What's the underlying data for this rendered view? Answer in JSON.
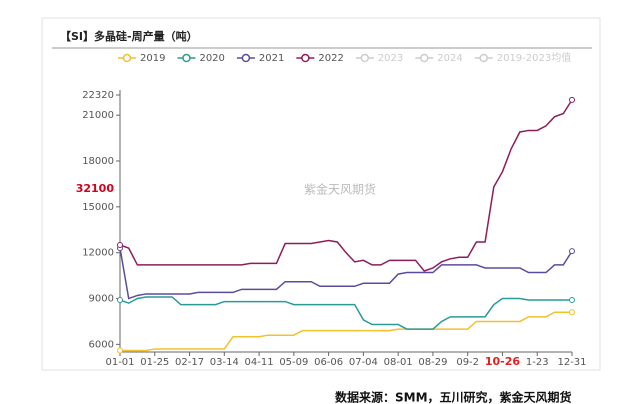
{
  "chart_data": {
    "type": "line",
    "title": "【SI】多晶硅-周产量（吨）",
    "watermark": "紫金天风期货",
    "source": "数据来源：SMM，五川研究，紫金天风期货",
    "annotation": "32100",
    "annotation_color": "#d0021b",
    "highlight": 44,
    "highlight_color": "#e02020",
    "categories": [
      "01-01",
      null,
      null,
      null,
      "01-25",
      null,
      null,
      null,
      "02-17",
      null,
      null,
      null,
      "03-14",
      null,
      null,
      null,
      "04-11",
      null,
      null,
      null,
      "05-09",
      null,
      null,
      null,
      "06-06",
      null,
      null,
      null,
      "07-04",
      null,
      null,
      null,
      "08-01",
      null,
      null,
      null,
      "08-29",
      null,
      null,
      null,
      "09-2",
      null,
      null,
      null,
      "10-26",
      null,
      null,
      null,
      "1-23",
      null,
      null,
      null,
      "12-31"
    ],
    "ylim": [
      5500,
      22320
    ],
    "yticks": [
      6000,
      9000,
      12000,
      15000,
      18000,
      21000,
      22320
    ],
    "grid": false,
    "series": [
      {
        "name": "2019",
        "color": "#f2c12e",
        "values": [
          5600,
          5600,
          5600,
          5600,
          5700,
          5700,
          5700,
          5700,
          5700,
          5700,
          5700,
          5700,
          5700,
          6500,
          6500,
          6500,
          6500,
          6600,
          6600,
          6600,
          6600,
          6900,
          6900,
          6900,
          6900,
          6900,
          6900,
          6900,
          6900,
          6900,
          6900,
          6900,
          7000,
          7000,
          7000,
          7000,
          7000,
          7000,
          7000,
          7000,
          7000,
          7500,
          7500,
          7500,
          7500,
          7500,
          7500,
          7800,
          7800,
          7800,
          8100,
          8100,
          8100
        ]
      },
      {
        "name": "2020",
        "color": "#2a9a96",
        "values": [
          8900,
          8700,
          9000,
          9100,
          9100,
          9100,
          9100,
          8600,
          8600,
          8600,
          8600,
          8600,
          8800,
          8800,
          8800,
          8800,
          8800,
          8800,
          8800,
          8800,
          8600,
          8600,
          8600,
          8600,
          8600,
          8600,
          8600,
          8600,
          7600,
          7300,
          7300,
          7300,
          7300,
          7000,
          7000,
          7000,
          7000,
          7500,
          7800,
          7800,
          7800,
          7800,
          7800,
          8600,
          9000,
          9000,
          9000,
          8900,
          8900,
          8900,
          8900,
          8900,
          8900
        ]
      },
      {
        "name": "2021",
        "color": "#5c4b9e",
        "values": [
          12300,
          9000,
          9200,
          9300,
          9300,
          9300,
          9300,
          9300,
          9300,
          9400,
          9400,
          9400,
          9400,
          9400,
          9600,
          9600,
          9600,
          9600,
          9600,
          10100,
          10100,
          10100,
          10100,
          9800,
          9800,
          9800,
          9800,
          9800,
          10000,
          10000,
          10000,
          10000,
          10600,
          10700,
          10700,
          10700,
          10700,
          11200,
          11200,
          11200,
          11200,
          11200,
          11000,
          11000,
          11000,
          11000,
          11000,
          10700,
          10700,
          10700,
          11200,
          11200,
          12100
        ]
      },
      {
        "name": "2022",
        "color": "#8c1d5c",
        "values": [
          12500,
          12300,
          11200,
          11200,
          11200,
          11200,
          11200,
          11200,
          11200,
          11200,
          11200,
          11200,
          11200,
          11200,
          11200,
          11300,
          11300,
          11300,
          11300,
          12600,
          12600,
          12600,
          12600,
          12700,
          12800,
          12700,
          12000,
          11400,
          11500,
          11200,
          11200,
          11500,
          11500,
          11500,
          11500,
          10800,
          11000,
          11400,
          11600,
          11700,
          11700,
          12700,
          12700,
          16300,
          17300,
          18800,
          19900,
          20000,
          20000,
          20300,
          20900,
          21100,
          22000
        ]
      }
    ],
    "legend_inactive": [
      {
        "name": "2023",
        "color": "#cccccc"
      },
      {
        "name": "2024",
        "color": "#cccccc"
      },
      {
        "name": "2019-2023均值",
        "color": "#cccccc"
      }
    ]
  }
}
